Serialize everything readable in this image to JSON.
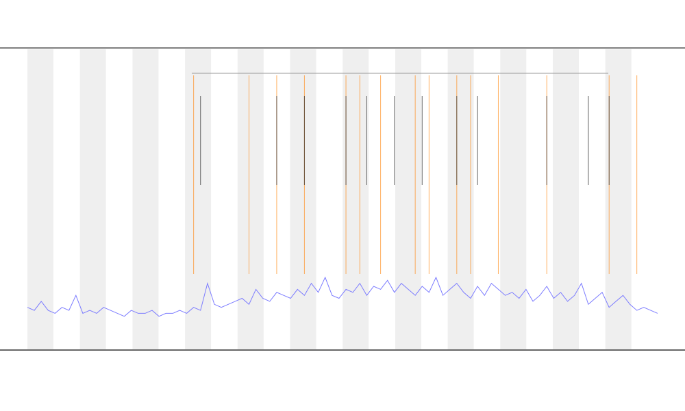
{
  "chart_data": {
    "type": "line",
    "series": [
      {
        "color": "#7b7bff",
        "values": [
          14,
          13,
          16,
          13,
          12,
          14,
          13,
          18,
          12,
          13,
          12,
          14,
          13,
          12,
          11,
          13,
          12,
          12,
          13,
          11,
          12,
          12,
          13,
          12,
          14,
          13,
          22,
          15,
          14,
          15,
          16,
          17,
          15,
          20,
          17,
          16,
          19,
          18,
          17,
          20,
          18,
          22,
          19,
          24,
          18,
          17,
          20,
          19,
          22,
          18,
          21,
          20,
          23,
          19,
          22,
          20,
          18,
          21,
          19,
          24,
          18,
          20,
          22,
          19,
          17,
          21,
          18,
          22,
          20,
          18,
          19,
          17,
          20,
          16,
          18,
          21,
          17,
          19,
          16,
          18,
          22,
          15,
          17,
          19,
          14,
          16,
          18,
          15,
          13,
          14,
          13,
          12
        ]
      }
    ],
    "events": [
      {
        "color": "#ff8c1a",
        "x": [
          24,
          32,
          36,
          40,
          46,
          48,
          51,
          56,
          58,
          62,
          64,
          68,
          75,
          84,
          88
        ]
      },
      {
        "color": "#222222",
        "x": [
          25,
          36,
          40,
          46,
          49,
          53,
          57,
          62,
          65,
          75,
          81,
          84
        ]
      }
    ],
    "ylim": [
      0,
      100
    ]
  }
}
